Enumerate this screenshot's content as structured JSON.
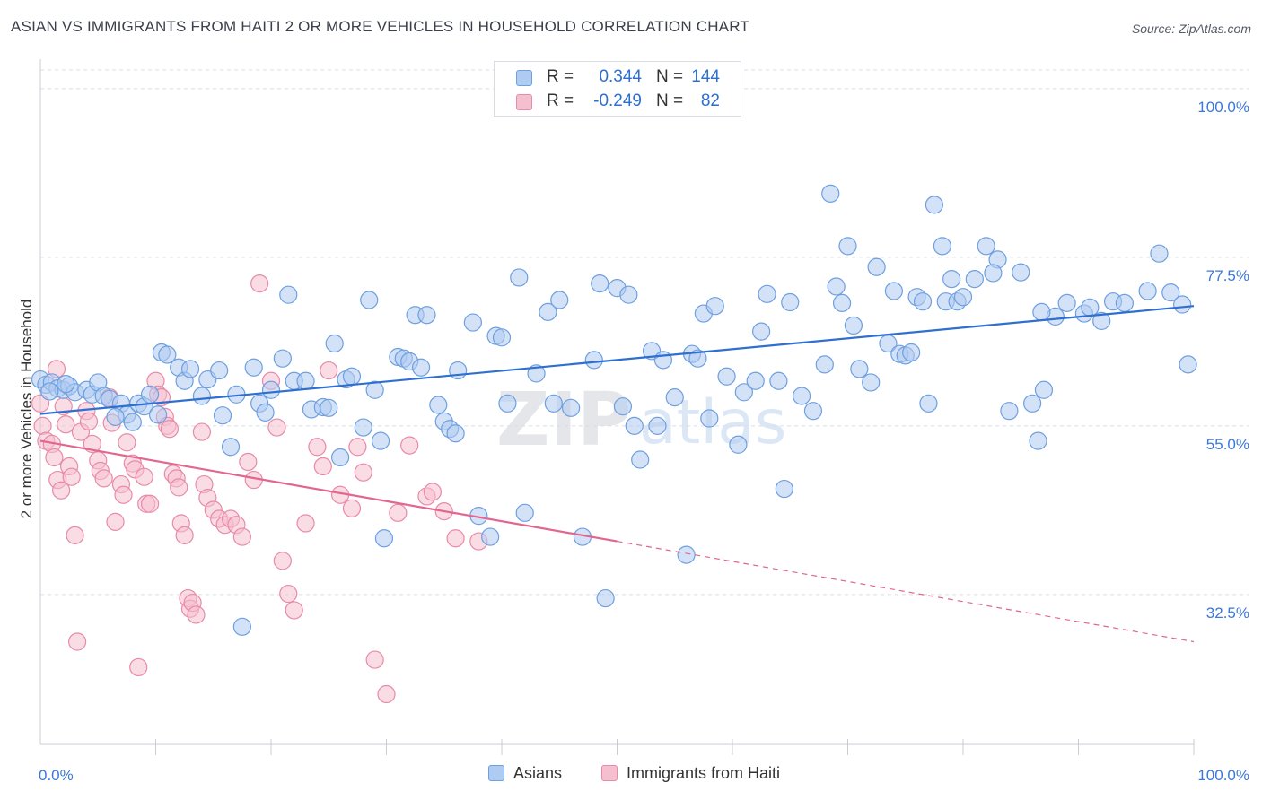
{
  "title": "ASIAN VS IMMIGRANTS FROM HAITI 2 OR MORE VEHICLES IN HOUSEHOLD CORRELATION CHART",
  "source": "Source: ZipAtlas.com",
  "watermark": {
    "zip": "ZIP",
    "atlas": "atlas"
  },
  "colors": {
    "asian_fill": "#aecbf1",
    "asian_stroke": "#6e9fe0",
    "asian_line": "#2e6fd0",
    "haiti_fill": "#f6bfcf",
    "haiti_stroke": "#e88aa8",
    "haiti_line": "#e2668f",
    "grid": "#d9dde3",
    "tick_label": "#3c78d8",
    "axis_label": "#333333"
  },
  "legend_top": [
    {
      "swatch": "asian",
      "r_label": "R =",
      "r_value": "0.344",
      "n_label": "N =",
      "n_value": "144"
    },
    {
      "swatch": "haiti",
      "r_label": "R =",
      "r_value": "-0.249",
      "n_label": "N =",
      "n_value": "82"
    }
  ],
  "legend_bottom": [
    {
      "swatch": "asian",
      "label": "Asians"
    },
    {
      "swatch": "haiti",
      "label": "Immigrants from Haiti"
    }
  ],
  "chart_data": {
    "type": "scatter",
    "title": "ASIAN VS IMMIGRANTS FROM HAITI 2 OR MORE VEHICLES IN HOUSEHOLD CORRELATION CHART",
    "xlabel": "",
    "ylabel": "2 or more Vehicles in Household",
    "xlim": [
      0,
      100
    ],
    "ylim": [
      12.5,
      102.5
    ],
    "x_tick_labels": [
      {
        "value": 0,
        "label": "0.0%"
      },
      {
        "value": 100,
        "label": "100.0%"
      }
    ],
    "y_tick_labels": [
      {
        "value": 100,
        "label": "100.0%"
      },
      {
        "value": 77.5,
        "label": "77.5%"
      },
      {
        "value": 55,
        "label": "55.0%"
      },
      {
        "value": 32.5,
        "label": "32.5%"
      }
    ],
    "grid": true,
    "legend_position": "top-center",
    "series": [
      {
        "name": "Asians",
        "color": "#6e9fe0",
        "r": 0.344,
        "n": 144,
        "trendline": {
          "x": [
            0,
            100
          ],
          "y": [
            56.6,
            71.0
          ],
          "style": "solid"
        },
        "points": [
          [
            0,
            61.2
          ],
          [
            0.5,
            60.5
          ],
          [
            1,
            60.8
          ],
          [
            1.5,
            60.0
          ],
          [
            2,
            59.8
          ],
          [
            2.5,
            60.3
          ],
          [
            3,
            59.5
          ],
          [
            4,
            59.8
          ],
          [
            4.5,
            59.2
          ],
          [
            5,
            60.8
          ],
          [
            5.5,
            59.0
          ],
          [
            6,
            58.6
          ],
          [
            7,
            58.0
          ],
          [
            7.5,
            56.5
          ],
          [
            8,
            55.5
          ],
          [
            8.5,
            58.0
          ],
          [
            9,
            57.6
          ],
          [
            9.5,
            59.2
          ],
          [
            10.5,
            64.8
          ],
          [
            11,
            64.5
          ],
          [
            12,
            62.8
          ],
          [
            12.5,
            61.0
          ],
          [
            13,
            62.6
          ],
          [
            14,
            59.0
          ],
          [
            14.5,
            61.2
          ],
          [
            15.5,
            62.4
          ],
          [
            15.8,
            56.4
          ],
          [
            16.5,
            52.2
          ],
          [
            17,
            59.2
          ],
          [
            18.5,
            62.8
          ],
          [
            19,
            58.0
          ],
          [
            19.5,
            56.8
          ],
          [
            20,
            59.8
          ],
          [
            21,
            64.0
          ],
          [
            21.5,
            72.5
          ],
          [
            22,
            61.0
          ],
          [
            23,
            61.0
          ],
          [
            23.5,
            57.2
          ],
          [
            24.5,
            57.5
          ],
          [
            25,
            57.4
          ],
          [
            25.5,
            66.0
          ],
          [
            26,
            50.8
          ],
          [
            26.5,
            61.2
          ],
          [
            27,
            61.6
          ],
          [
            28,
            54.8
          ],
          [
            28.5,
            71.8
          ],
          [
            29,
            59.8
          ],
          [
            29.5,
            53.0
          ],
          [
            29.8,
            40.0
          ],
          [
            31,
            64.2
          ],
          [
            31.5,
            64.0
          ],
          [
            32,
            63.6
          ],
          [
            32.5,
            69.8
          ],
          [
            33,
            62.8
          ],
          [
            33.5,
            69.8
          ],
          [
            34.5,
            57.8
          ],
          [
            35,
            55.6
          ],
          [
            35.5,
            54.6
          ],
          [
            36,
            54.0
          ],
          [
            37.5,
            68.8
          ],
          [
            38,
            43.0
          ],
          [
            39,
            40.2
          ],
          [
            39.5,
            67.0
          ],
          [
            40,
            66.8
          ],
          [
            40.5,
            58.0
          ],
          [
            41.5,
            74.8
          ],
          [
            42,
            43.4
          ],
          [
            43,
            62.0
          ],
          [
            44,
            70.2
          ],
          [
            44.5,
            58.0
          ],
          [
            45,
            71.8
          ],
          [
            46,
            57.4
          ],
          [
            47,
            40.2
          ],
          [
            48,
            63.8
          ],
          [
            48.5,
            74.0
          ],
          [
            49,
            32.0
          ],
          [
            50,
            73.4
          ],
          [
            50.5,
            57.6
          ],
          [
            51,
            72.5
          ],
          [
            51.5,
            55.0
          ],
          [
            52,
            50.5
          ],
          [
            53,
            65.0
          ],
          [
            53.5,
            55.0
          ],
          [
            54,
            63.8
          ],
          [
            55,
            58.8
          ],
          [
            56,
            37.8
          ],
          [
            56.5,
            64.6
          ],
          [
            57,
            64.0
          ],
          [
            57.5,
            70.0
          ],
          [
            58,
            56.0
          ],
          [
            58.5,
            71.0
          ],
          [
            59.5,
            61.6
          ],
          [
            60.5,
            52.5
          ],
          [
            61,
            59.5
          ],
          [
            62,
            61.0
          ],
          [
            62.5,
            67.6
          ],
          [
            63,
            72.6
          ],
          [
            64,
            61.0
          ],
          [
            64.5,
            46.6
          ],
          [
            65,
            71.5
          ],
          [
            66,
            59.0
          ],
          [
            67,
            57.0
          ],
          [
            68,
            63.2
          ],
          [
            69,
            73.6
          ],
          [
            69.5,
            71.4
          ],
          [
            70,
            79.0
          ],
          [
            70.5,
            68.4
          ],
          [
            71,
            62.6
          ],
          [
            72,
            60.8
          ],
          [
            72.5,
            76.2
          ],
          [
            73.5,
            66.0
          ],
          [
            74,
            73.0
          ],
          [
            74.5,
            64.6
          ],
          [
            75,
            64.4
          ],
          [
            75.5,
            64.8
          ],
          [
            76,
            72.2
          ],
          [
            76.5,
            71.6
          ],
          [
            77,
            58.0
          ],
          [
            78.5,
            71.6
          ],
          [
            79,
            74.6
          ],
          [
            79.5,
            71.6
          ],
          [
            80,
            72.2
          ],
          [
            81,
            74.6
          ],
          [
            82,
            79.0
          ],
          [
            83,
            77.2
          ],
          [
            84,
            57.0
          ],
          [
            85,
            75.5
          ],
          [
            86,
            58.0
          ],
          [
            86.5,
            53.0
          ],
          [
            87,
            59.8
          ],
          [
            88,
            69.6
          ],
          [
            89,
            71.4
          ],
          [
            90.5,
            70.0
          ],
          [
            91,
            70.8
          ],
          [
            92,
            69.0
          ],
          [
            93,
            71.6
          ],
          [
            94,
            71.4
          ],
          [
            96,
            73.0
          ],
          [
            97,
            78.0
          ],
          [
            98,
            72.8
          ],
          [
            99,
            71.2
          ],
          [
            99.5,
            63.2
          ],
          [
            68.5,
            86.0
          ],
          [
            77.5,
            84.5
          ],
          [
            86.8,
            70.2
          ],
          [
            78.2,
            79.0
          ],
          [
            82.6,
            75.4
          ],
          [
            36.2,
            62.4
          ],
          [
            17.5,
            28.2
          ],
          [
            0.8,
            59.6
          ],
          [
            2.2,
            60.6
          ],
          [
            6.5,
            56.2
          ],
          [
            10.2,
            56.5
          ]
        ]
      },
      {
        "name": "Immigrants from Haiti",
        "color": "#e88aa8",
        "r": -0.249,
        "n": 82,
        "trendline": {
          "x": [
            0,
            50,
            100
          ],
          "y": [
            53.0,
            39.6,
            26.2
          ],
          "style": "solid-then-dashed"
        },
        "points": [
          [
            0,
            58.0
          ],
          [
            0.2,
            55.0
          ],
          [
            0.5,
            53.0
          ],
          [
            1,
            52.6
          ],
          [
            1.2,
            50.8
          ],
          [
            1.5,
            47.8
          ],
          [
            1.8,
            46.4
          ],
          [
            2,
            57.6
          ],
          [
            2.2,
            55.2
          ],
          [
            2.5,
            49.6
          ],
          [
            2.7,
            48.2
          ],
          [
            3,
            40.4
          ],
          [
            3.2,
            26.2
          ],
          [
            3.5,
            54.2
          ],
          [
            4,
            57.0
          ],
          [
            4.2,
            55.6
          ],
          [
            4.5,
            52.6
          ],
          [
            5,
            50.4
          ],
          [
            5.2,
            49.0
          ],
          [
            5.5,
            48.0
          ],
          [
            6,
            58.8
          ],
          [
            6.2,
            55.4
          ],
          [
            6.5,
            42.2
          ],
          [
            7,
            47.2
          ],
          [
            7.2,
            45.8
          ],
          [
            7.5,
            52.8
          ],
          [
            8,
            50.0
          ],
          [
            8.2,
            49.2
          ],
          [
            8.5,
            22.8
          ],
          [
            9,
            48.2
          ],
          [
            9.2,
            44.6
          ],
          [
            9.5,
            44.6
          ],
          [
            10,
            61.0
          ],
          [
            10.2,
            59.2
          ],
          [
            10.5,
            58.8
          ],
          [
            10.8,
            56.2
          ],
          [
            11,
            55.0
          ],
          [
            11.2,
            54.6
          ],
          [
            11.5,
            48.6
          ],
          [
            11.8,
            48.0
          ],
          [
            12,
            46.8
          ],
          [
            12.2,
            42.0
          ],
          [
            12.5,
            40.4
          ],
          [
            12.8,
            32.0
          ],
          [
            13,
            30.6
          ],
          [
            13.2,
            31.4
          ],
          [
            13.5,
            29.8
          ],
          [
            14,
            54.2
          ],
          [
            14.2,
            47.2
          ],
          [
            14.5,
            45.4
          ],
          [
            15,
            43.8
          ],
          [
            15.5,
            42.6
          ],
          [
            16,
            41.8
          ],
          [
            16.5,
            42.6
          ],
          [
            17,
            41.8
          ],
          [
            17.5,
            40.2
          ],
          [
            18,
            50.2
          ],
          [
            18.5,
            47.8
          ],
          [
            19,
            74.0
          ],
          [
            20,
            61.0
          ],
          [
            20.5,
            54.8
          ],
          [
            21,
            37.0
          ],
          [
            21.5,
            32.6
          ],
          [
            22,
            30.4
          ],
          [
            23,
            42.0
          ],
          [
            24,
            52.2
          ],
          [
            24.5,
            49.6
          ],
          [
            25,
            62.4
          ],
          [
            26,
            45.8
          ],
          [
            27,
            44.0
          ],
          [
            27.5,
            52.2
          ],
          [
            28,
            48.8
          ],
          [
            29,
            23.8
          ],
          [
            30,
            19.2
          ],
          [
            31,
            43.4
          ],
          [
            32,
            52.4
          ],
          [
            33.5,
            45.6
          ],
          [
            34,
            46.2
          ],
          [
            35,
            43.6
          ],
          [
            36,
            40.0
          ],
          [
            38,
            39.6
          ],
          [
            1.4,
            62.6
          ]
        ]
      }
    ]
  }
}
